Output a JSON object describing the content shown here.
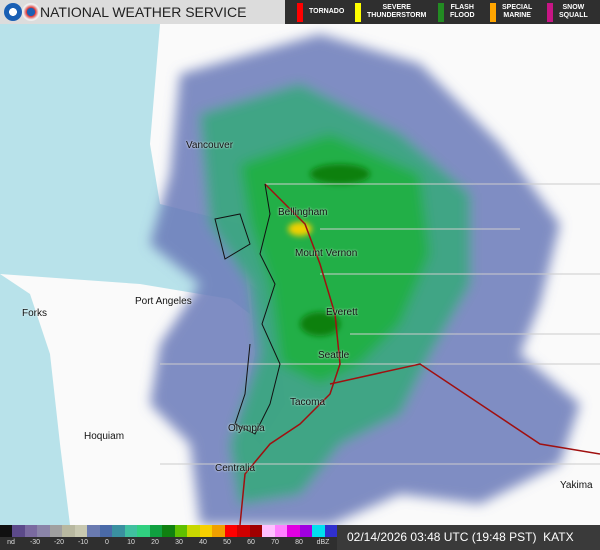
{
  "header": {
    "title": "NATIONAL WEATHER SERVICE",
    "logos": [
      "noaa-logo",
      "nws-logo"
    ]
  },
  "warnings": [
    {
      "label": "TORNADO",
      "color": "#ff0000"
    },
    {
      "label": "SEVERE\nTHUNDERSTORM",
      "color": "#ffff00"
    },
    {
      "label": "FLASH\nFLOOD",
      "color": "#228b22"
    },
    {
      "label": "SPECIAL\nMARINE",
      "color": "#ffa500"
    },
    {
      "label": "SNOW\nSQUALL",
      "color": "#c71585"
    }
  ],
  "cities": [
    "Vancouver",
    "Bellingham",
    "Mount Vernon",
    "Port Angeles",
    "Forks",
    "Everett",
    "Seattle",
    "Tacoma",
    "Hoquiam",
    "Olympia",
    "Centralia",
    "Yakima"
  ],
  "legend": {
    "ticks": [
      "nd",
      "-30",
      "-20",
      "-10",
      "0",
      "10",
      "20",
      "30",
      "40",
      "50",
      "60",
      "70",
      "80",
      "dBZ"
    ],
    "colors": [
      "#111111",
      "#5c4a8a",
      "#7a6aa0",
      "#8a84a8",
      "#a0a0a0",
      "#b8b8a0",
      "#c8c8b0",
      "#6a7ab0",
      "#4a6aa8",
      "#3a90a0",
      "#40c0a0",
      "#30d080",
      "#10a040",
      "#108010",
      "#60c000",
      "#c8d800",
      "#f8d000",
      "#f0a000",
      "#ff0000",
      "#d00000",
      "#a00000",
      "#ffc0ff",
      "#ff80ff",
      "#e000e0",
      "#a000e0",
      "#00e0f0",
      "#3030d0"
    ]
  },
  "status": {
    "timestamp": "02/14/2026 03:48 UTC (19:48 PST)",
    "station": "KATX"
  }
}
